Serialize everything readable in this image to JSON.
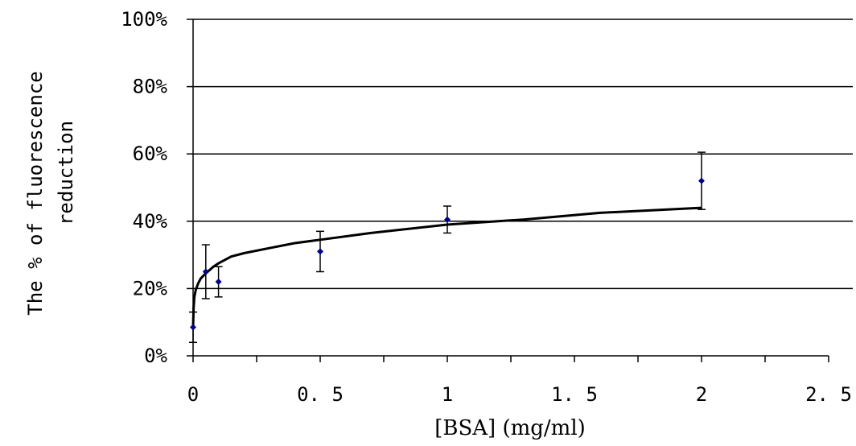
{
  "chart_data": {
    "type": "scatter",
    "title": "",
    "xlabel": "[BSA]  (mg/ml)",
    "ylabel_line1": "The % of fluorescence",
    "ylabel_line2": "reduction",
    "xlim": [
      0,
      2.5
    ],
    "ylim": [
      0,
      100
    ],
    "x_ticks": [
      "0",
      "0. 5",
      "1",
      "1. 5",
      "2",
      "2. 5"
    ],
    "y_ticks": [
      "0%",
      "20%",
      "40%",
      "60%",
      "80%",
      "100%"
    ],
    "grid": "horizontal",
    "legend": "none",
    "series": [
      {
        "points": [
          {
            "x": 0,
            "y": 8.5,
            "err": 4.5
          },
          {
            "x": 0.05,
            "y": 25,
            "err": 8
          },
          {
            "x": 0.1,
            "y": 22,
            "err": 4.5
          },
          {
            "x": 0.5,
            "y": 31,
            "err": 6
          },
          {
            "x": 1,
            "y": 40.5,
            "err": 4
          },
          {
            "x": 2,
            "y": 52,
            "err": 8.5
          }
        ],
        "marker_color": "#00008B"
      }
    ],
    "fit_line": {
      "x": [
        0.002,
        0.005,
        0.01,
        0.02,
        0.03,
        0.05,
        0.08,
        0.1,
        0.15,
        0.2,
        0.3,
        0.4,
        0.5,
        0.7,
        1.0,
        1.3,
        1.6,
        2.0
      ],
      "y": [
        14,
        17.5,
        19.5,
        21.5,
        23,
        24.5,
        26.5,
        27.5,
        29.5,
        30.5,
        32,
        33.5,
        34.5,
        36.5,
        39,
        40.5,
        42.5,
        44
      ]
    }
  }
}
